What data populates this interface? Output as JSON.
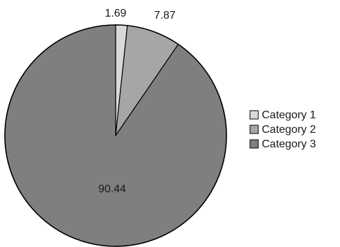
{
  "chart_data": {
    "type": "pie",
    "categories": [
      "Category 1",
      "Category 2",
      "Category 3"
    ],
    "values": [
      1.69,
      7.87,
      90.44
    ],
    "data_labels": [
      "1.69",
      "7.87",
      "90.44"
    ],
    "colors": [
      "#d9d9d9",
      "#a6a6a6",
      "#7f7f7f"
    ],
    "start_angle": "12 o'clock",
    "direction": "clockwise",
    "legend_position": "right"
  }
}
